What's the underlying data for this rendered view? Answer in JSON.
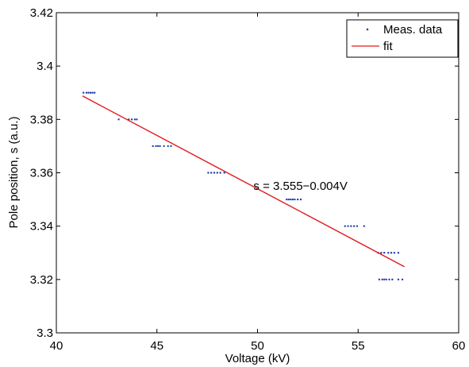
{
  "chart_data": {
    "type": "scatter",
    "title": "",
    "xlabel": "Voltage (kV)",
    "ylabel": "Pole position, s (a.u.)",
    "xlim": [
      40,
      60
    ],
    "ylim": [
      3.3,
      3.42
    ],
    "xticks": [
      "40",
      "45",
      "50",
      "55",
      "60"
    ],
    "yticks": [
      "3.3",
      "3.32",
      "3.34",
      "3.36",
      "3.38",
      "3.4",
      "3.42"
    ],
    "grid": false,
    "legend_position": "top-right",
    "colors": {
      "data": "#1f3fa8",
      "fit": "#e31a1c"
    },
    "series": [
      {
        "name": "Meas. data",
        "mode": "markers",
        "points": [
          [
            41.35,
            3.39
          ],
          [
            41.5,
            3.39
          ],
          [
            41.6,
            3.39
          ],
          [
            41.7,
            3.39
          ],
          [
            41.8,
            3.39
          ],
          [
            41.9,
            3.39
          ],
          [
            43.1,
            3.38
          ],
          [
            43.6,
            3.38
          ],
          [
            43.75,
            3.38
          ],
          [
            43.9,
            3.38
          ],
          [
            44.0,
            3.38
          ],
          [
            44.8,
            3.37
          ],
          [
            44.95,
            3.37
          ],
          [
            45.05,
            3.37
          ],
          [
            45.15,
            3.37
          ],
          [
            45.35,
            3.37
          ],
          [
            45.55,
            3.37
          ],
          [
            45.7,
            3.37
          ],
          [
            47.55,
            3.36
          ],
          [
            47.7,
            3.36
          ],
          [
            47.85,
            3.36
          ],
          [
            48.0,
            3.36
          ],
          [
            48.15,
            3.36
          ],
          [
            48.35,
            3.36
          ],
          [
            51.45,
            3.35
          ],
          [
            51.55,
            3.35
          ],
          [
            51.65,
            3.35
          ],
          [
            51.75,
            3.35
          ],
          [
            51.85,
            3.35
          ],
          [
            52.0,
            3.35
          ],
          [
            52.15,
            3.35
          ],
          [
            54.35,
            3.34
          ],
          [
            54.5,
            3.34
          ],
          [
            54.65,
            3.34
          ],
          [
            54.8,
            3.34
          ],
          [
            54.95,
            3.34
          ],
          [
            55.3,
            3.34
          ],
          [
            56.0,
            3.33
          ],
          [
            56.15,
            3.33
          ],
          [
            56.3,
            3.33
          ],
          [
            56.5,
            3.33
          ],
          [
            56.65,
            3.33
          ],
          [
            56.8,
            3.33
          ],
          [
            57.0,
            3.33
          ],
          [
            56.05,
            3.32
          ],
          [
            56.2,
            3.32
          ],
          [
            56.3,
            3.32
          ],
          [
            56.4,
            3.32
          ],
          [
            56.55,
            3.32
          ],
          [
            56.7,
            3.32
          ],
          [
            57.0,
            3.32
          ],
          [
            57.2,
            3.32
          ]
        ]
      },
      {
        "name": "fit",
        "mode": "line",
        "points": [
          [
            41.3,
            3.3888
          ],
          [
            57.3,
            3.3248
          ]
        ]
      }
    ],
    "annotations": [
      {
        "text": "s = 3.555−0.004V",
        "x": 49.8,
        "y": 3.3536
      }
    ]
  }
}
